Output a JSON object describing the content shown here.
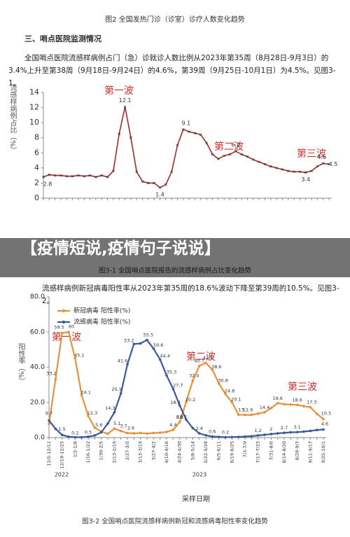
{
  "header": {
    "figure_caption": "图2 全国发热门诊（诊室）诊疗人数变化趋势",
    "section_title": "三、哨点医院监测情况"
  },
  "paragraphs": [
    "全国哨点医院流感样病例占门（急）诊就诊人数比例从2023年第35周（8月28日-9月3日）的3.4%上升至第38周（9月18日-9月24日）的4.6%，第39周（9月25日-10月1日）为4.5%。见图3-1。",
    "流感样病例新冠病毒阳性率从2023年第35周的18.6%波动下降至第39周的10.5%。见图3-2。"
  ],
  "banner": "【疫情短说,疫情句子说说】",
  "chart_data": [
    {
      "type": "line",
      "y_label": "流感样病例占比（%）",
      "caption": "图3-1 全国哨点医院报告的流感样病例占比变化趋势",
      "annotations": [
        "第一波",
        "第二波",
        "第三波"
      ],
      "ylim": [
        0,
        14
      ],
      "yticks": [
        0,
        2,
        4,
        6,
        8,
        10,
        12,
        14
      ],
      "categories": [
        null,
        null,
        null,
        null,
        null,
        null,
        null,
        null,
        null,
        null,
        null,
        null,
        null,
        null,
        null,
        null,
        null,
        null,
        null,
        null,
        null,
        null,
        null,
        null,
        null,
        null,
        null,
        null,
        null,
        null,
        null,
        null,
        null,
        null,
        null,
        null,
        null,
        null,
        null,
        null,
        null,
        null,
        null,
        null,
        null,
        null,
        null,
        null,
        null,
        null
      ],
      "color": "#a8282c",
      "values": [
        2.8,
        3.1,
        3.0,
        3.0,
        2.9,
        2.9,
        3.0,
        2.9,
        3.0,
        2.8,
        3.0,
        2.8,
        3.6,
        8.5,
        12.1,
        8.0,
        3.5,
        2.2,
        2.0,
        2.0,
        1.4,
        1.8,
        3.5,
        7.0,
        9.1,
        8.8,
        8.6,
        8.4,
        7.3,
        5.8,
        5.2,
        5.6,
        5.8,
        6.2,
        5.8,
        5.5,
        5.1,
        4.8,
        4.5,
        4.2,
        4.0,
        3.8,
        3.6,
        3.5,
        3.5,
        3.4,
        3.6,
        4.2,
        4.6,
        4.5
      ]
    },
    {
      "type": "line",
      "y_label": "阳性率（%）",
      "x_label": "采样日期",
      "caption": "图3-2 全国哨点医院流感样病例新冠和流感病毒阳性率变化趋势",
      "annotations": [
        "第一波",
        "第二波",
        "第三波"
      ],
      "year_labels": [
        "2022",
        "2023"
      ],
      "ylim": [
        0,
        80
      ],
      "yticks": [
        {
          "value": 0,
          "label": "0.0"
        },
        {
          "value": 20,
          "label": "20.0"
        },
        {
          "value": 40,
          "label": "40.0"
        },
        {
          "value": 60,
          "label": "60.0"
        },
        {
          "value": 80,
          "label": "80.0"
        }
      ],
      "categories": [
        "12/5-12/11",
        null,
        "12/19-12/25",
        null,
        "1/2-1/8",
        null,
        "1/16-1/22",
        null,
        "1/30-2/5",
        null,
        "2/13-2/19",
        null,
        "2/27-3/5",
        null,
        "3/13-3/19",
        null,
        "3/27-4/2",
        null,
        "4/10-4/16",
        null,
        "4/24-4/30",
        null,
        "5/8-5/14",
        null,
        "5/22-5/28",
        null,
        "6/5-6/11",
        null,
        "6/19-6/25",
        null,
        "7/3-7/9",
        null,
        "7/17-7/23",
        null,
        "7/31-8/6",
        null,
        "8/14-8/20",
        null,
        "8/28-9/3",
        null,
        "9/11-9/17",
        null,
        "9/25-10/1"
      ],
      "series": [
        {
          "name": "新冠病毒 阳性率(%)",
          "color": "#e8913a",
          "values": [
            7.8,
            33.2,
            59.5,
            60,
            45.1,
            24.1,
            12.3,
            5.6,
            3.4,
            2.2,
            5.1,
            3.7,
            2.6,
            2.4,
            2.6,
            2.3,
            2.6,
            2.8,
            3.2,
            4.4,
            8.8,
            20.2,
            32.4,
            40.7,
            42.5,
            38.6,
            30.8,
            24.8,
            20.1,
            13.0,
            12.9,
            12.9,
            13.6,
            14.4,
            16.8,
            19.6,
            19.0,
            18.8,
            18.6,
            17.8,
            17.3,
            13.5,
            10.5
          ]
        },
        {
          "name": "流感病毒 阳性率(%)",
          "color": "#3a5a9c",
          "values": [
            9.7,
            5.0,
            1.5,
            0.5,
            0.2,
            0.2,
            0.5,
            1.2,
            3.0,
            8.0,
            14.3,
            25.1,
            41.6,
            53.2,
            53.5,
            55.5,
            50.6,
            44.4,
            35.3,
            27.7,
            18.3,
            10.2,
            5.4,
            2.4,
            1.3,
            0.6,
            0.4,
            0.2,
            0.3,
            0.4,
            0.6,
            0.8,
            1.2,
            1.6,
            2.0,
            2.4,
            2.7,
            3.0,
            3.1,
            3.4,
            3.8,
            4.3,
            4.6
          ]
        }
      ]
    }
  ]
}
